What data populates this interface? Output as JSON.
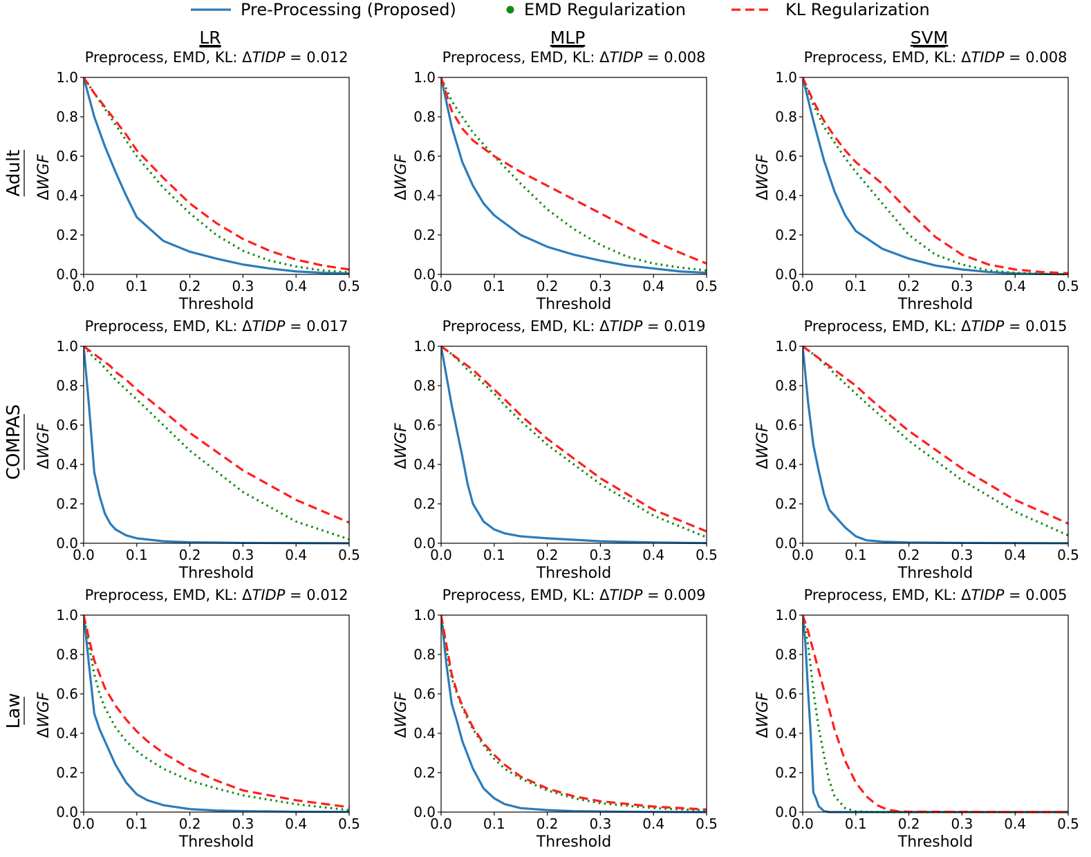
{
  "legend": {
    "items": [
      {
        "label": "Pre-Processing (Proposed)",
        "color": "#2b7bba",
        "style": "solid"
      },
      {
        "label": "EMD Regularization",
        "color": "#138a13",
        "style": "dot"
      },
      {
        "label": "KL Regularization",
        "color": "#ff1f1f",
        "style": "dashed"
      }
    ],
    "placement": "top-center"
  },
  "columns": [
    "LR",
    "MLP",
    "SVM"
  ],
  "rows": [
    "Adult",
    "COMPAS",
    "Law"
  ],
  "chart_data": [
    {
      "type": "line",
      "row": "Adult",
      "column": "LR",
      "subtitle_prefix": "Preprocess, EMD, KL: Δ",
      "subtitle_metric": "TIDP",
      "subtitle_value": "= 0.012",
      "xlabel": "Threshold",
      "ylabel_prefix": "Δ",
      "ylabel_metric": "WGF",
      "xlim": [
        0,
        0.5
      ],
      "ylim": [
        0,
        1
      ],
      "xticks": [
        "0.0",
        "0.1",
        "0.2",
        "0.3",
        "0.4",
        "0.5"
      ],
      "yticks": [
        "0.0",
        "0.2",
        "0.4",
        "0.6",
        "0.8",
        "1.0"
      ],
      "x": [
        0,
        0.02,
        0.04,
        0.06,
        0.08,
        0.1,
        0.15,
        0.2,
        0.25,
        0.3,
        0.35,
        0.4,
        0.45,
        0.5
      ],
      "series": [
        {
          "values": [
            1.0,
            0.8,
            0.65,
            0.52,
            0.4,
            0.29,
            0.17,
            0.115,
            0.08,
            0.05,
            0.03,
            0.015,
            0.008,
            0.005
          ]
        },
        {
          "values": [
            1.0,
            0.92,
            0.84,
            0.76,
            0.68,
            0.6,
            0.44,
            0.31,
            0.2,
            0.12,
            0.07,
            0.04,
            0.02,
            0.01
          ]
        },
        {
          "values": [
            1.0,
            0.92,
            0.85,
            0.78,
            0.71,
            0.63,
            0.49,
            0.36,
            0.26,
            0.18,
            0.12,
            0.075,
            0.045,
            0.025
          ]
        }
      ]
    },
    {
      "type": "line",
      "row": "Adult",
      "column": "MLP",
      "subtitle_prefix": "Preprocess, EMD, KL: Δ",
      "subtitle_metric": "TIDP",
      "subtitle_value": "= 0.008",
      "xlabel": "Threshold",
      "ylabel_prefix": "Δ",
      "ylabel_metric": "WGF",
      "xlim": [
        0,
        0.5
      ],
      "ylim": [
        0,
        1
      ],
      "xticks": [
        "0.0",
        "0.1",
        "0.2",
        "0.3",
        "0.4",
        "0.5"
      ],
      "yticks": [
        "0.0",
        "0.2",
        "0.4",
        "0.6",
        "0.8",
        "1.0"
      ],
      "x": [
        0,
        0.02,
        0.04,
        0.06,
        0.08,
        0.1,
        0.15,
        0.2,
        0.25,
        0.3,
        0.35,
        0.4,
        0.45,
        0.5
      ],
      "series": [
        {
          "values": [
            1.0,
            0.75,
            0.57,
            0.45,
            0.36,
            0.3,
            0.2,
            0.14,
            0.1,
            0.07,
            0.045,
            0.03,
            0.015,
            0.008
          ]
        },
        {
          "values": [
            1.0,
            0.88,
            0.8,
            0.72,
            0.66,
            0.6,
            0.46,
            0.33,
            0.23,
            0.15,
            0.09,
            0.055,
            0.035,
            0.02
          ]
        },
        {
          "values": [
            1.0,
            0.83,
            0.74,
            0.68,
            0.64,
            0.6,
            0.52,
            0.45,
            0.38,
            0.31,
            0.24,
            0.17,
            0.11,
            0.055
          ]
        }
      ]
    },
    {
      "type": "line",
      "row": "Adult",
      "column": "SVM",
      "subtitle_prefix": "Preprocess, EMD, KL: Δ",
      "subtitle_metric": "TIDP",
      "subtitle_value": "= 0.008",
      "xlabel": "Threshold",
      "ylabel_prefix": "Δ",
      "ylabel_metric": "WGF",
      "xlim": [
        0,
        0.5
      ],
      "ylim": [
        0,
        1
      ],
      "xticks": [
        "0.0",
        "0.1",
        "0.2",
        "0.3",
        "0.4",
        "0.5"
      ],
      "yticks": [
        "0.0",
        "0.2",
        "0.4",
        "0.6",
        "0.8",
        "1.0"
      ],
      "x": [
        0,
        0.02,
        0.04,
        0.06,
        0.08,
        0.1,
        0.15,
        0.2,
        0.25,
        0.3,
        0.35,
        0.4,
        0.45,
        0.5
      ],
      "series": [
        {
          "values": [
            1.0,
            0.78,
            0.58,
            0.42,
            0.3,
            0.22,
            0.13,
            0.08,
            0.045,
            0.025,
            0.012,
            0.005,
            0.002,
            0.001
          ]
        },
        {
          "values": [
            1.0,
            0.86,
            0.75,
            0.67,
            0.59,
            0.52,
            0.36,
            0.2,
            0.1,
            0.05,
            0.02,
            0.008,
            0.003,
            0.001
          ]
        },
        {
          "values": [
            1.0,
            0.88,
            0.78,
            0.7,
            0.63,
            0.57,
            0.46,
            0.32,
            0.19,
            0.1,
            0.05,
            0.025,
            0.012,
            0.006
          ]
        }
      ]
    },
    {
      "type": "line",
      "row": "COMPAS",
      "column": "LR",
      "subtitle_prefix": "Preprocess, EMD, KL: Δ",
      "subtitle_metric": "TIDP",
      "subtitle_value": "= 0.017",
      "xlabel": "Threshold",
      "ylabel_prefix": "Δ",
      "ylabel_metric": "WGF",
      "xlim": [
        0,
        0.5
      ],
      "ylim": [
        0,
        1
      ],
      "xticks": [
        "0.0",
        "0.1",
        "0.2",
        "0.3",
        "0.4",
        "0.5"
      ],
      "yticks": [
        "0.0",
        "0.2",
        "0.4",
        "0.6",
        "0.8",
        "1.0"
      ],
      "x": [
        0,
        0.01,
        0.02,
        0.03,
        0.04,
        0.05,
        0.06,
        0.08,
        0.1,
        0.15,
        0.2,
        0.3,
        0.4,
        0.5
      ],
      "series": [
        {
          "values": [
            1.0,
            0.7,
            0.36,
            0.24,
            0.15,
            0.1,
            0.07,
            0.04,
            0.025,
            0.01,
            0.005,
            0.002,
            0.001,
            0.0
          ]
        },
        {
          "values": [
            1.0,
            0.97,
            0.94,
            0.92,
            0.89,
            0.86,
            0.83,
            0.78,
            0.73,
            0.6,
            0.47,
            0.26,
            0.11,
            0.02
          ]
        },
        {
          "values": [
            1.0,
            0.98,
            0.96,
            0.94,
            0.92,
            0.9,
            0.87,
            0.83,
            0.78,
            0.67,
            0.56,
            0.37,
            0.22,
            0.105
          ]
        }
      ]
    },
    {
      "type": "line",
      "row": "COMPAS",
      "column": "MLP",
      "subtitle_prefix": "Preprocess, EMD, KL: Δ",
      "subtitle_metric": "TIDP",
      "subtitle_value": "= 0.019",
      "xlabel": "Threshold",
      "ylabel_prefix": "Δ",
      "ylabel_metric": "WGF",
      "xlim": [
        0,
        0.5
      ],
      "ylim": [
        0,
        1
      ],
      "xticks": [
        "0.0",
        "0.1",
        "0.2",
        "0.3",
        "0.4",
        "0.5"
      ],
      "yticks": [
        "0.0",
        "0.2",
        "0.4",
        "0.6",
        "0.8",
        "1.0"
      ],
      "x": [
        0,
        0.02,
        0.04,
        0.05,
        0.06,
        0.08,
        0.1,
        0.12,
        0.15,
        0.2,
        0.3,
        0.4,
        0.5
      ],
      "series": [
        {
          "values": [
            1.0,
            0.7,
            0.44,
            0.3,
            0.2,
            0.11,
            0.07,
            0.05,
            0.035,
            0.025,
            0.01,
            0.004,
            0.001
          ]
        },
        {
          "values": [
            1.0,
            0.96,
            0.91,
            0.88,
            0.86,
            0.81,
            0.76,
            0.7,
            0.62,
            0.5,
            0.3,
            0.14,
            0.03
          ]
        },
        {
          "values": [
            1.0,
            0.96,
            0.92,
            0.9,
            0.88,
            0.83,
            0.78,
            0.73,
            0.65,
            0.53,
            0.33,
            0.17,
            0.06
          ]
        }
      ]
    },
    {
      "type": "line",
      "row": "COMPAS",
      "column": "SVM",
      "subtitle_prefix": "Preprocess, EMD, KL: Δ",
      "subtitle_metric": "TIDP",
      "subtitle_value": "= 0.015",
      "xlabel": "Threshold",
      "ylabel_prefix": "Δ",
      "ylabel_metric": "WGF",
      "xlim": [
        0,
        0.5
      ],
      "ylim": [
        0,
        1
      ],
      "xticks": [
        "0.0",
        "0.1",
        "0.2",
        "0.3",
        "0.4",
        "0.5"
      ],
      "yticks": [
        "0.0",
        "0.2",
        "0.4",
        "0.6",
        "0.8",
        "1.0"
      ],
      "x": [
        0,
        0.01,
        0.02,
        0.03,
        0.04,
        0.05,
        0.06,
        0.08,
        0.1,
        0.12,
        0.15,
        0.2,
        0.3,
        0.4,
        0.5
      ],
      "series": [
        {
          "values": [
            1.0,
            0.72,
            0.5,
            0.37,
            0.25,
            0.17,
            0.14,
            0.08,
            0.035,
            0.015,
            0.008,
            0.004,
            0.002,
            0.001,
            0.0
          ]
        },
        {
          "values": [
            1.0,
            0.98,
            0.96,
            0.94,
            0.91,
            0.89,
            0.86,
            0.81,
            0.76,
            0.71,
            0.64,
            0.52,
            0.32,
            0.16,
            0.04
          ]
        },
        {
          "values": [
            1.0,
            0.98,
            0.96,
            0.94,
            0.92,
            0.9,
            0.88,
            0.84,
            0.8,
            0.75,
            0.68,
            0.57,
            0.38,
            0.22,
            0.1
          ]
        }
      ]
    },
    {
      "type": "line",
      "row": "Law",
      "column": "LR",
      "subtitle_prefix": "Preprocess, EMD, KL: Δ",
      "subtitle_metric": "TIDP",
      "subtitle_value": "= 0.012",
      "xlabel": "Threshold",
      "ylabel_prefix": "Δ",
      "ylabel_metric": "WGF",
      "xlim": [
        0,
        0.5
      ],
      "ylim": [
        0,
        1
      ],
      "xticks": [
        "0.0",
        "0.1",
        "0.2",
        "0.3",
        "0.4",
        "0.5"
      ],
      "yticks": [
        "0.0",
        "0.2",
        "0.4",
        "0.6",
        "0.8",
        "1.0"
      ],
      "x": [
        0,
        0.01,
        0.02,
        0.03,
        0.04,
        0.06,
        0.08,
        0.1,
        0.12,
        0.15,
        0.2,
        0.25,
        0.3,
        0.4,
        0.5
      ],
      "series": [
        {
          "values": [
            1.0,
            0.75,
            0.5,
            0.42,
            0.36,
            0.24,
            0.15,
            0.09,
            0.06,
            0.035,
            0.015,
            0.008,
            0.005,
            0.002,
            0.001
          ]
        },
        {
          "values": [
            1.0,
            0.85,
            0.7,
            0.6,
            0.53,
            0.43,
            0.36,
            0.31,
            0.27,
            0.22,
            0.16,
            0.12,
            0.085,
            0.04,
            0.01
          ]
        },
        {
          "values": [
            1.0,
            0.88,
            0.77,
            0.7,
            0.63,
            0.54,
            0.47,
            0.41,
            0.36,
            0.3,
            0.22,
            0.16,
            0.11,
            0.06,
            0.025
          ]
        }
      ]
    },
    {
      "type": "line",
      "row": "Law",
      "column": "MLP",
      "subtitle_prefix": "Preprocess, EMD, KL: Δ",
      "subtitle_metric": "TIDP",
      "subtitle_value": "= 0.009",
      "xlabel": "Threshold",
      "ylabel_prefix": "Δ",
      "ylabel_metric": "WGF",
      "xlim": [
        0,
        0.5
      ],
      "ylim": [
        0,
        1
      ],
      "xticks": [
        "0.0",
        "0.1",
        "0.2",
        "0.3",
        "0.4",
        "0.5"
      ],
      "yticks": [
        "0.0",
        "0.2",
        "0.4",
        "0.6",
        "0.8",
        "1.0"
      ],
      "x": [
        0,
        0.01,
        0.02,
        0.03,
        0.04,
        0.06,
        0.08,
        0.1,
        0.12,
        0.15,
        0.2,
        0.25,
        0.3,
        0.4,
        0.5
      ],
      "series": [
        {
          "values": [
            1.0,
            0.75,
            0.55,
            0.46,
            0.36,
            0.22,
            0.12,
            0.07,
            0.04,
            0.02,
            0.01,
            0.005,
            0.003,
            0.001,
            0.0
          ]
        },
        {
          "values": [
            1.0,
            0.82,
            0.68,
            0.6,
            0.53,
            0.42,
            0.34,
            0.27,
            0.22,
            0.17,
            0.11,
            0.07,
            0.045,
            0.02,
            0.008
          ]
        },
        {
          "values": [
            1.0,
            0.85,
            0.7,
            0.61,
            0.54,
            0.43,
            0.35,
            0.29,
            0.24,
            0.18,
            0.12,
            0.08,
            0.055,
            0.028,
            0.013
          ]
        }
      ]
    },
    {
      "type": "line",
      "row": "Law",
      "column": "SVM",
      "subtitle_prefix": "Preprocess, EMD, KL: Δ",
      "subtitle_metric": "TIDP",
      "subtitle_value": "= 0.005",
      "xlabel": "Threshold",
      "ylabel_prefix": "Δ",
      "ylabel_metric": "WGF",
      "xlim": [
        0,
        0.5
      ],
      "ylim": [
        0,
        1
      ],
      "xticks": [
        "0.0",
        "0.1",
        "0.2",
        "0.3",
        "0.4",
        "0.5"
      ],
      "yticks": [
        "0.0",
        "0.2",
        "0.4",
        "0.6",
        "0.8",
        "1.0"
      ],
      "x": [
        0,
        0.005,
        0.01,
        0.015,
        0.02,
        0.025,
        0.03,
        0.04,
        0.05,
        0.06,
        0.08,
        0.1,
        0.12,
        0.14,
        0.16,
        0.18,
        0.2,
        0.3,
        0.4,
        0.5
      ],
      "series": [
        {
          "values": [
            1.0,
            0.86,
            0.62,
            0.4,
            0.1,
            0.07,
            0.03,
            0.005,
            0.0,
            0.0,
            0.0,
            0.0,
            0.0,
            0.0,
            0.0,
            0.0,
            0.0,
            0.0,
            0.0,
            0.0
          ]
        },
        {
          "values": [
            1.0,
            0.93,
            0.85,
            0.74,
            0.62,
            0.52,
            0.43,
            0.29,
            0.16,
            0.08,
            0.02,
            0.004,
            0.001,
            0.0,
            0.0,
            0.0,
            0.0,
            0.0,
            0.0,
            0.0
          ]
        },
        {
          "values": [
            1.0,
            0.96,
            0.92,
            0.87,
            0.82,
            0.77,
            0.72,
            0.62,
            0.52,
            0.42,
            0.26,
            0.15,
            0.08,
            0.035,
            0.012,
            0.004,
            0.002,
            0.001,
            0.0,
            0.0
          ]
        }
      ]
    }
  ]
}
